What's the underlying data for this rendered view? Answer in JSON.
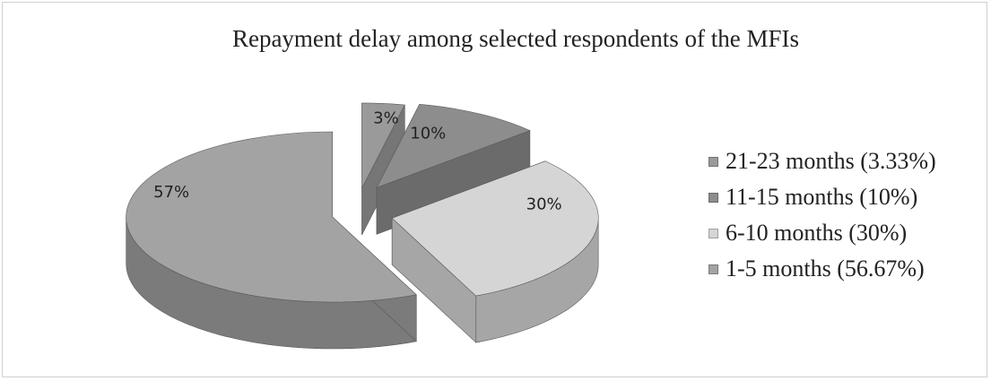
{
  "chart_data": {
    "type": "pie",
    "title": "Repayment delay among selected respondents of the MFIs",
    "slices": [
      {
        "name": "21-23 months (3.33%)",
        "value": 3.33,
        "label": "3%",
        "color": "#9a9a9a",
        "side": "#767676"
      },
      {
        "name": "11-15 months (10%)",
        "value": 10,
        "label": "10%",
        "color": "#8d8d8d",
        "side": "#6b6b6b"
      },
      {
        "name": "6-10 months (30%)",
        "value": 30,
        "label": "30%",
        "color": "#d5d5d5",
        "side": "#a6a6a6"
      },
      {
        "name": "1-5 months (56.67%)",
        "value": 56.67,
        "label": "57%",
        "color": "#a3a3a3",
        "side": "#7b7b7b"
      }
    ],
    "legend": "right",
    "style": "3d-exploded"
  }
}
